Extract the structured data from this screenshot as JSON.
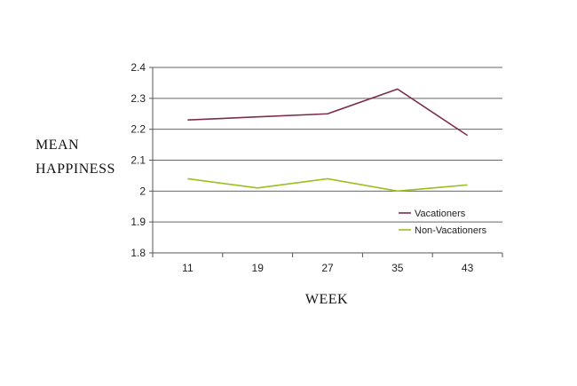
{
  "chart_data": {
    "type": "line",
    "title": "",
    "xlabel": "WEEK",
    "ylabel": [
      "MEAN",
      "HAPPINESS"
    ],
    "categories": [
      "11",
      "19",
      "27",
      "35",
      "43"
    ],
    "ylim": [
      1.8,
      2.4
    ],
    "yticks": [
      "1.8",
      "1.9",
      "2",
      "2.1",
      "2.2",
      "2.3",
      "2.4"
    ],
    "grid": true,
    "legend_position": "lower-right",
    "series": [
      {
        "name": "Vacationers",
        "values": [
          2.23,
          2.24,
          2.25,
          2.33,
          2.18
        ],
        "color": "#7b2d4e"
      },
      {
        "name": "Non-Vacationers",
        "values": [
          2.04,
          2.01,
          2.04,
          2.0,
          2.02
        ],
        "color": "#9dbf1e"
      }
    ]
  }
}
